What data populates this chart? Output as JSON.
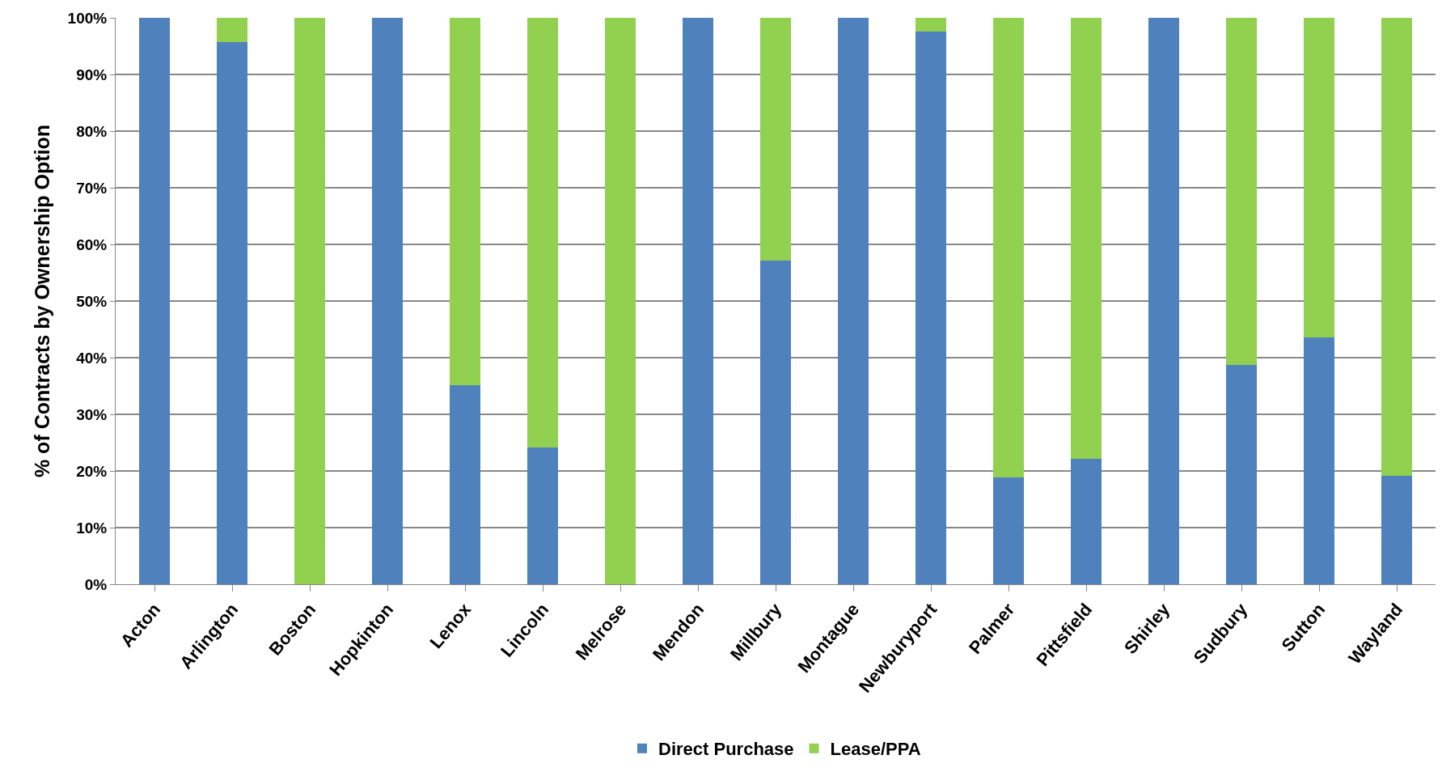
{
  "chart_data": {
    "type": "bar",
    "stacked": true,
    "ylabel": "% of Contracts by Ownership Option",
    "categories": [
      "Acton",
      "Arlington",
      "Boston",
      "Hopkinton",
      "Lenox",
      "Lincoln",
      "Melrose",
      "Mendon",
      "Millbury",
      "Montague",
      "Newburyport",
      "Palmer",
      "Pittsfield",
      "Shirley",
      "Sudbury",
      "Sutton",
      "Wayland"
    ],
    "series": [
      {
        "name": "Direct Purchase",
        "color": "#4f81bd",
        "values": [
          100,
          95.7,
          0,
          100,
          35.2,
          24.2,
          0,
          100,
          57.2,
          100,
          97.6,
          18.8,
          22.1,
          100,
          38.7,
          43.6,
          19.1
        ]
      },
      {
        "name": "Lease/PPA",
        "color": "#92d050",
        "values": [
          0,
          4.3,
          100,
          0,
          64.8,
          75.8,
          100,
          0,
          42.8,
          0,
          2.4,
          81.2,
          77.9,
          0,
          61.3,
          56.4,
          80.9
        ]
      }
    ],
    "ylim": [
      0,
      100
    ],
    "yticks": [
      {
        "value": 0,
        "label": "0%"
      },
      {
        "value": 10,
        "label": "10%"
      },
      {
        "value": 20,
        "label": "20%"
      },
      {
        "value": 30,
        "label": "30%"
      },
      {
        "value": 40,
        "label": "40%"
      },
      {
        "value": 50,
        "label": "50%"
      },
      {
        "value": 60,
        "label": "60%"
      },
      {
        "value": 70,
        "label": "70%"
      },
      {
        "value": 80,
        "label": "80%"
      },
      {
        "value": 90,
        "label": "90%"
      },
      {
        "value": 100,
        "label": "100%"
      }
    ],
    "grid": "y",
    "legend": "bottom"
  }
}
